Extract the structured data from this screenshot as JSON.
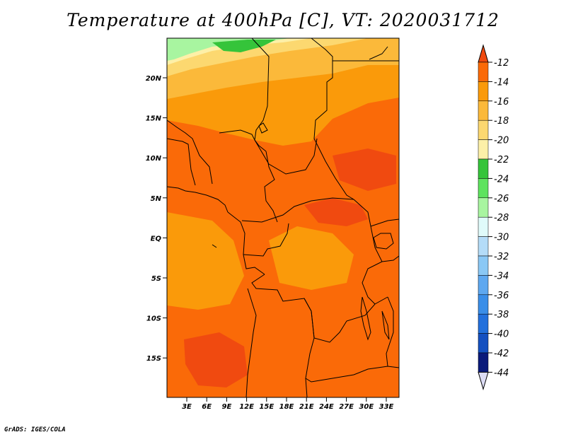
{
  "title": "Temperature at 400hPa [C], VT: 2020031712",
  "credit": "GrADS: IGES/COLA",
  "axes": {
    "lat_ticks": [
      "20N",
      "15N",
      "10N",
      "5N",
      "EQ",
      "5S",
      "10S",
      "15S"
    ],
    "lon_ticks": [
      "3E",
      "6E",
      "9E",
      "12E",
      "15E",
      "18E",
      "21E",
      "24E",
      "27E",
      "30E",
      "33E"
    ]
  },
  "colorbar": {
    "labels": [
      "-12",
      "-14",
      "-16",
      "-18",
      "-20",
      "-22",
      "-24",
      "-26",
      "-28",
      "-30",
      "-32",
      "-34",
      "-36",
      "-38",
      "-40",
      "-42",
      "-44"
    ],
    "colors": [
      "#f04a10",
      "#fa6a08",
      "#fa9a0a",
      "#fbb93a",
      "#fcd870",
      "#fdf0a8",
      "#35c43a",
      "#5ee35e",
      "#a8f5a0",
      "#e0fbfa",
      "#b4dcf8",
      "#8ac8f5",
      "#5ea8f0",
      "#3a8ee8",
      "#2270dc",
      "#1450c0",
      "#0a1a7a",
      "#dcdcf4"
    ]
  },
  "colors": {
    "warm_dark": "#f04a10",
    "warm_main": "#fa6a08",
    "warm_mid": "#fa9a0a",
    "warm_light": "#fbb93a",
    "yellow": "#fcd870",
    "pale": "#fdf0a8",
    "green": "#35c43a",
    "light_green": "#5ee35e",
    "pale_green": "#a8f5a0"
  }
}
